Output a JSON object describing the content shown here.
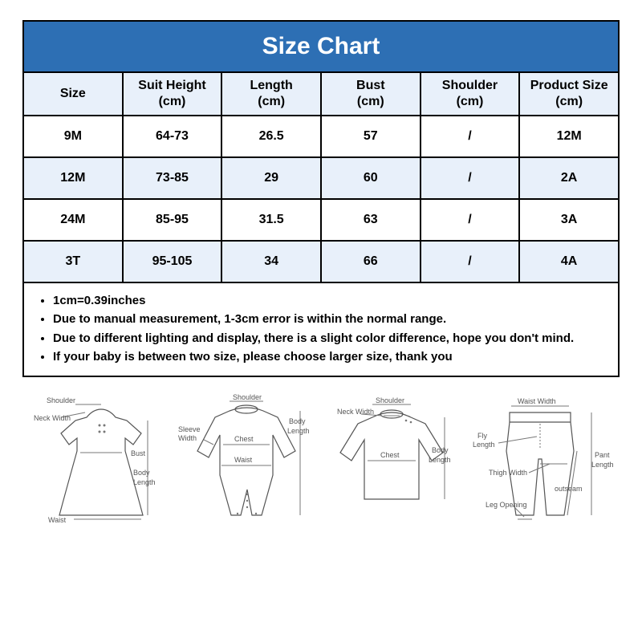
{
  "title": "Size Chart",
  "table": {
    "columns": [
      "Size",
      "Suit Height\n(cm)",
      "Length\n(cm)",
      "Bust\n(cm)",
      "Shoulder\n(cm)",
      "Product Size\n(cm)"
    ],
    "rows": [
      [
        "9M",
        "64-73",
        "26.5",
        "57",
        "/",
        "12M"
      ],
      [
        "12M",
        "73-85",
        "29",
        "60",
        "/",
        "2A"
      ],
      [
        "24M",
        "85-95",
        "31.5",
        "63",
        "/",
        "3A"
      ],
      [
        "3T",
        "95-105",
        "34",
        "66",
        "/",
        "4A"
      ]
    ],
    "header_bg": "#e8f0fa",
    "alt_row_bg": "#e8f0fa",
    "border_color": "#000000",
    "title_bg": "#2d6fb4",
    "title_color": "#ffffff"
  },
  "notes": [
    "1cm=0.39inches",
    "Due to manual measurement, 1-3cm error is within the normal range.",
    "Due to different lighting and display, there is a slight color difference, hope you don't mind.",
    "If your baby is between two size, please choose larger size, thank you"
  ],
  "diagrams": {
    "dress": {
      "labels": [
        "Shoulder",
        "Neck Width",
        "Bust",
        "Waist",
        "Body Length"
      ]
    },
    "romper": {
      "labels": [
        "Shoulder",
        "Sleeve Width",
        "Chest",
        "Waist",
        "Body Length"
      ]
    },
    "top": {
      "labels": [
        "Shoulder",
        "Neck Width",
        "Chest",
        "Body Length"
      ]
    },
    "pants": {
      "labels": [
        "Waist Width",
        "Fly Length",
        "Thigh Width",
        "Leg Opening",
        "outseam",
        "Pant Length"
      ]
    }
  }
}
